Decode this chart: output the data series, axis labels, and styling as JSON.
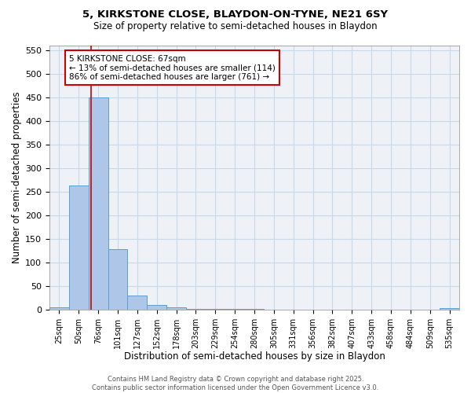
{
  "title_line1": "5, KIRKSTONE CLOSE, BLAYDON-ON-TYNE, NE21 6SY",
  "title_line2": "Size of property relative to semi-detached houses in Blaydon",
  "xlabel": "Distribution of semi-detached houses by size in Blaydon",
  "ylabel": "Number of semi-detached properties",
  "categories": [
    "25sqm",
    "50sqm",
    "76sqm",
    "101sqm",
    "127sqm",
    "152sqm",
    "178sqm",
    "203sqm",
    "229sqm",
    "254sqm",
    "280sqm",
    "305sqm",
    "331sqm",
    "356sqm",
    "382sqm",
    "407sqm",
    "433sqm",
    "458sqm",
    "484sqm",
    "509sqm",
    "535sqm"
  ],
  "values": [
    5,
    262,
    450,
    127,
    30,
    10,
    5,
    2,
    2,
    2,
    2,
    0,
    0,
    0,
    0,
    0,
    0,
    0,
    0,
    0,
    3
  ],
  "bar_color": "#aec6e8",
  "bar_edge_color": "#5a9fd4",
  "grid_color": "#c8d8e8",
  "property_line_color": "#cc0000",
  "property_label": "5 KIRKSTONE CLOSE: 67sqm",
  "annotation_line1": "← 13% of semi-detached houses are smaller (114)",
  "annotation_line2": "86% of semi-detached houses are larger (761) →",
  "annotation_box_color": "#ffffff",
  "annotation_box_edge": "#cc0000",
  "ylim": [
    0,
    560
  ],
  "yticks": [
    0,
    50,
    100,
    150,
    200,
    250,
    300,
    350,
    400,
    450,
    500,
    550
  ],
  "footer_line1": "Contains HM Land Registry data © Crown copyright and database right 2025.",
  "footer_line2": "Contains public sector information licensed under the Open Government Licence v3.0.",
  "bg_color": "#eef2f7"
}
